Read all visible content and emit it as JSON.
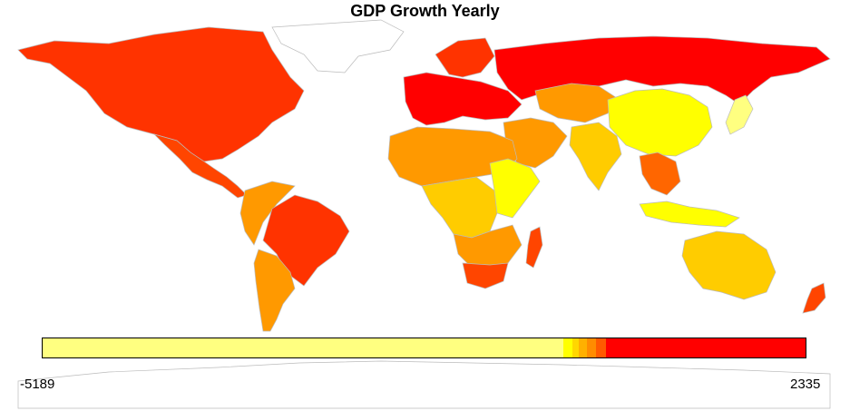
{
  "title": "GDP Growth Yearly",
  "legend": {
    "min_label": "-5189",
    "max_label": "2335",
    "segments": [
      {
        "color": "#FFFF80",
        "fraction": 0.683
      },
      {
        "color": "#FFFF00",
        "fraction": 0.012
      },
      {
        "color": "#FFD700",
        "fraction": 0.008
      },
      {
        "color": "#FFB000",
        "fraction": 0.01
      },
      {
        "color": "#FF8C00",
        "fraction": 0.012
      },
      {
        "color": "#FF5A00",
        "fraction": 0.014
      },
      {
        "color": "#FF0000",
        "fraction": 0.261
      }
    ]
  },
  "colors": {
    "north_america": "#FF3300",
    "greenland": "#FFFFFF",
    "central_america": "#FF4500",
    "south_america_north": "#FF9900",
    "brazil": "#FF3300",
    "argentina": "#FF9900",
    "chile": "#FF9900",
    "western_europe": "#FF0000",
    "scandinavia": "#FF3300",
    "russia": "#FF0000",
    "central_asia": "#FF9900",
    "china": "#FFFF00",
    "india": "#FFCC00",
    "middle_east": "#FF9900",
    "north_africa": "#FF9900",
    "central_africa": "#FFCC00",
    "east_africa": "#FFFF00",
    "southern_africa": "#FF9900",
    "south_africa": "#FF4500",
    "madagascar": "#FF4500",
    "southeast_asia": "#FF6600",
    "indonesia": "#FFFF00",
    "australia": "#FFCC00",
    "new_zealand": "#FF4500",
    "japan": "#FFFF80",
    "antarctica": "#FFFFFF",
    "border": "#BBBBBB"
  }
}
